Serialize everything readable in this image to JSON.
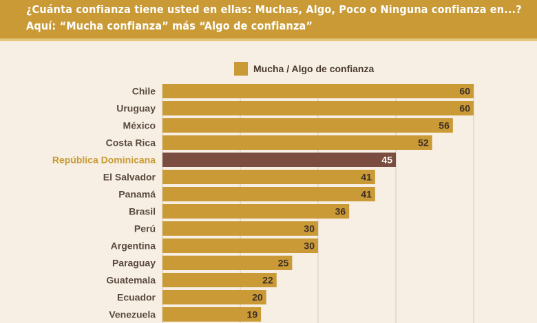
{
  "header": {
    "question_line1": "¿Cuánta confianza tiene usted en ellas: Muchas, Algo, Poco o Ninguna confianza en...?",
    "question_line2": "Aquí: “Mucha confianza” más “Algo de confianza”"
  },
  "colors": {
    "header_bg": "#c99a35",
    "bar": "#c99a35",
    "bar_highlight": "#7a4d40",
    "label_highlight": "#c99a35",
    "background": "#f7efe3"
  },
  "chart_data": {
    "type": "bar",
    "orientation": "horizontal",
    "legend": {
      "position": "top",
      "entries": [
        "Mucha / Algo de confianza"
      ]
    },
    "series": [
      {
        "name": "Mucha / Algo de confianza",
        "values": [
          60,
          60,
          56,
          52,
          45,
          41,
          41,
          36,
          30,
          30,
          25,
          22,
          20,
          19
        ]
      }
    ],
    "categories": [
      "Chile",
      "Uruguay",
      "México",
      "Costa Rica",
      "República Dominicana",
      "El Salvador",
      "Panamá",
      "Brasil",
      "Perú",
      "Argentina",
      "Paraguay",
      "Guatemala",
      "Ecuador",
      "Venezuela"
    ],
    "highlight": "República Dominicana",
    "xlim": [
      0,
      60
    ],
    "grid": true
  }
}
